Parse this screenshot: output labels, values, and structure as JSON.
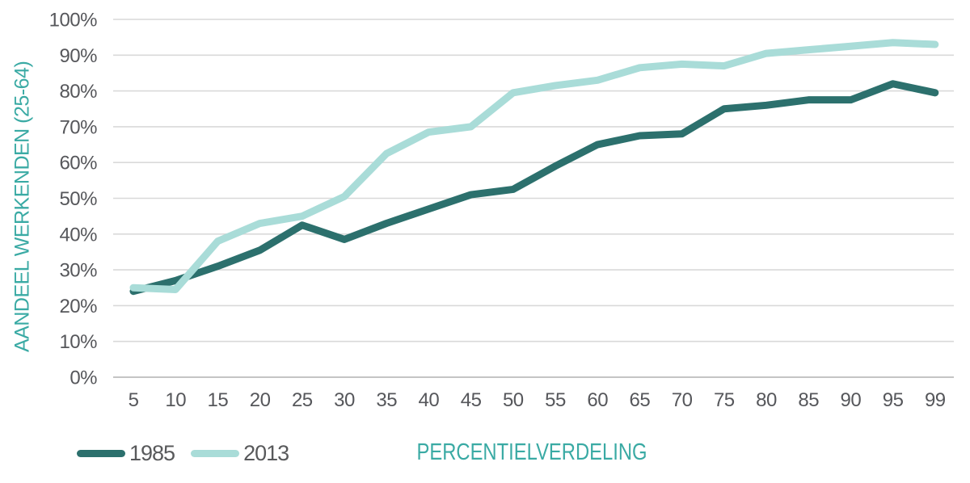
{
  "chart_data": {
    "type": "line",
    "title": "",
    "categories": [
      5,
      10,
      15,
      20,
      25,
      30,
      35,
      40,
      45,
      50,
      55,
      60,
      65,
      70,
      75,
      80,
      85,
      90,
      95,
      99
    ],
    "series": [
      {
        "name": "1985",
        "color": "#2C706D",
        "values": [
          24,
          27,
          31,
          35.5,
          42.5,
          38.5,
          43,
          47,
          51,
          52.5,
          59,
          65,
          67.5,
          68,
          75,
          76,
          77.5,
          77.5,
          82,
          79.5
        ]
      },
      {
        "name": "2013",
        "color": "#A9DCD8",
        "values": [
          25,
          24.5,
          38,
          43,
          45,
          50.5,
          62.5,
          68.5,
          70,
          79.5,
          81.5,
          83,
          86.5,
          87.5,
          87,
          90.5,
          91.5,
          92.5,
          93.5,
          93
        ]
      }
    ],
    "y_tick_labels": [
      "0%",
      "10%",
      "20%",
      "30%",
      "40%",
      "50%",
      "60%",
      "70%",
      "80%",
      "90%",
      "100%"
    ],
    "xlabel": "PERCENTIELVERDELING",
    "ylabel": "AANDEEL WERKENDEN (25-64)",
    "ylim": [
      0,
      100
    ],
    "y_tick_step": 10,
    "grid": "horizontal",
    "legend_position": "bottom-left",
    "styles": {
      "background": "#FFFFFF",
      "grid_color": "#D9D9D9",
      "axis_line_color": "#C4C4C4",
      "tick_label_color": "#56575B",
      "axis_title_color": "#3AAAA4",
      "legend_text_color": "#58595B",
      "line_width": 9
    }
  }
}
